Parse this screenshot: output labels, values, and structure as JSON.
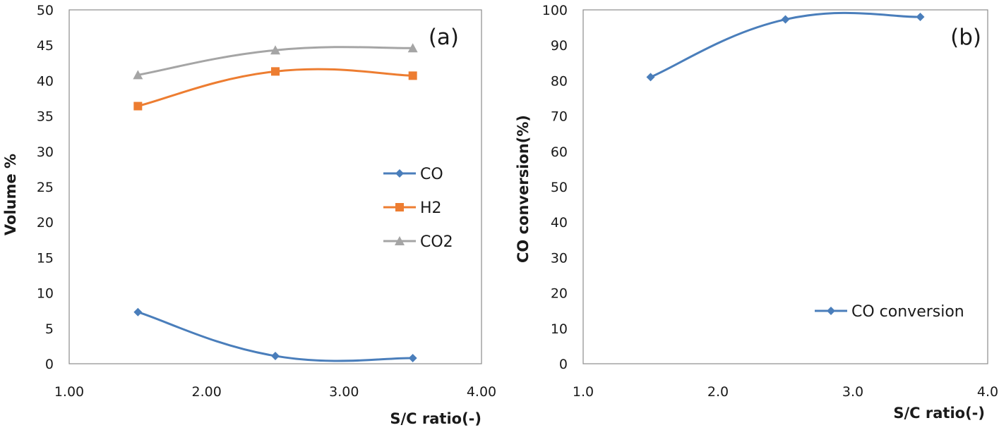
{
  "chart_data": [
    {
      "type": "line",
      "panel_label": "(a)",
      "xlabel": "S/C ratio(-)",
      "ylabel": "Volume %",
      "xlim": [
        1.0,
        4.0
      ],
      "ylim": [
        0,
        50
      ],
      "xticks": [
        "1.00",
        "2.00",
        "3.00",
        "4.00"
      ],
      "yticks": [
        "0",
        "5",
        "10",
        "15",
        "20",
        "25",
        "30",
        "35",
        "40",
        "45",
        "50"
      ],
      "x": [
        1.5,
        2.5,
        3.5
      ],
      "grid": false,
      "legend_position": "center-right",
      "series": [
        {
          "name": "CO",
          "values": [
            7.3,
            1.1,
            0.8
          ],
          "color": "#4a7ebb",
          "marker": "diamond"
        },
        {
          "name": "H2",
          "values": [
            36.4,
            41.3,
            40.7
          ],
          "color": "#ed7d31",
          "marker": "square"
        },
        {
          "name": "CO2",
          "values": [
            40.8,
            44.3,
            44.6
          ],
          "color": "#a5a5a5",
          "marker": "triangle"
        }
      ]
    },
    {
      "type": "line",
      "panel_label": "(b)",
      "xlabel": "S/C ratio(-)",
      "ylabel": "CO conversion(%)",
      "xlim": [
        1.0,
        4.0
      ],
      "ylim": [
        0,
        100
      ],
      "xticks": [
        "1.0",
        "2.0",
        "3.0",
        "4.0"
      ],
      "yticks": [
        "0",
        "10",
        "20",
        "30",
        "40",
        "50",
        "60",
        "70",
        "80",
        "90",
        "100"
      ],
      "x": [
        1.5,
        2.5,
        3.5
      ],
      "grid": false,
      "legend_position": "bottom-right",
      "series": [
        {
          "name": "CO conversion",
          "values": [
            81.0,
            97.3,
            98.0
          ],
          "color": "#4a7ebb",
          "marker": "diamond"
        }
      ]
    }
  ]
}
